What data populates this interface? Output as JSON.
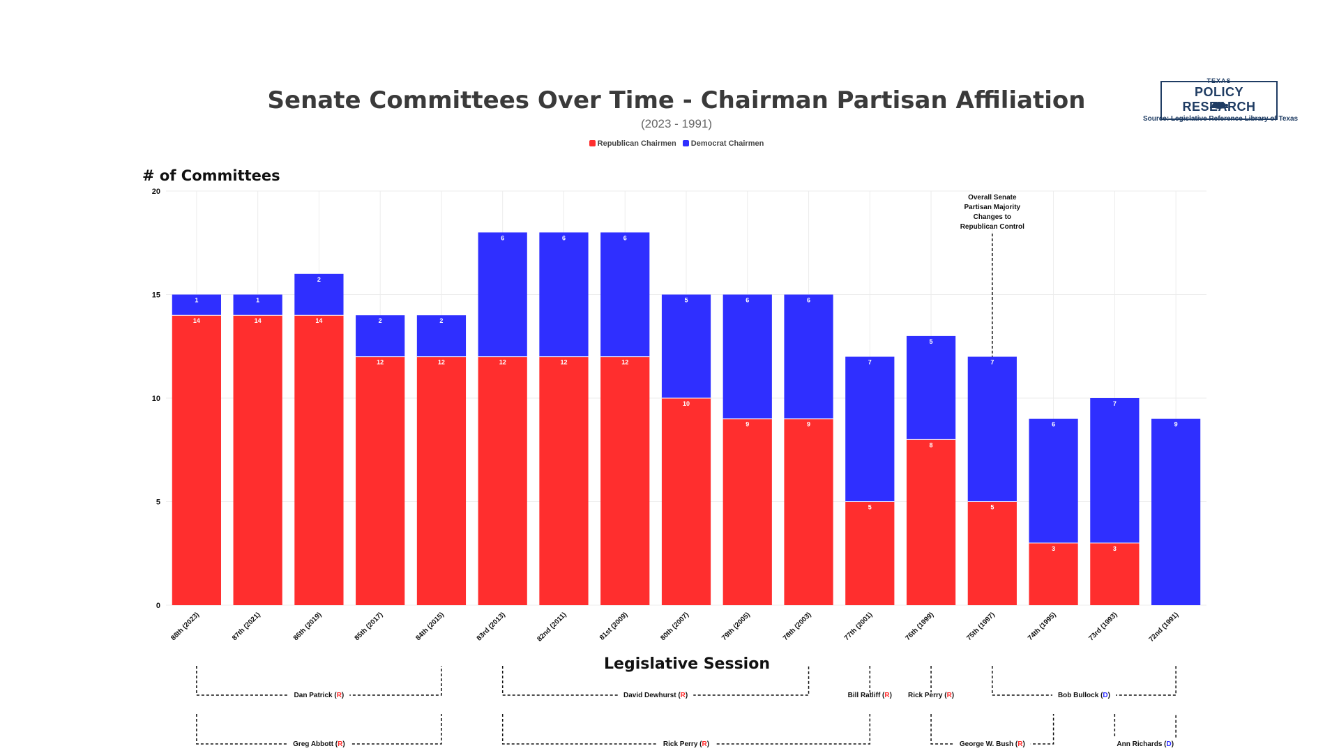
{
  "header": {
    "title": "Senate Committees Over Time - Chairman Partisan Affiliation",
    "subtitle": "(2023 - 1991)"
  },
  "branding": {
    "logo_top": "TEXAS",
    "logo_main": "POLICY RESEARCH",
    "source": "Source: Legislative Reference Library of Texas"
  },
  "colors": {
    "republican": "#ff2e2e",
    "democrat": "#2f2fff",
    "grid": "#ececec",
    "axis_text": "#111111"
  },
  "chart_data": {
    "type": "bar",
    "stacked": true,
    "ylabel": "# of Committees",
    "xlabel": "Legislative Session",
    "ylim": [
      0,
      20
    ],
    "yticks": [
      0,
      5,
      10,
      15,
      20
    ],
    "grid": true,
    "legend_position": "top-center",
    "categories": [
      "88th (2023)",
      "87th (2021)",
      "86th (2019)",
      "85th (2017)",
      "84th (2015)",
      "83rd (2013)",
      "82nd (2011)",
      "81st (2009)",
      "80th (2007)",
      "79th (2005)",
      "78th (2003)",
      "77th (2001)",
      "76th (1999)",
      "75th (1997)",
      "74th (1995)",
      "73rd (1993)",
      "72nd (1991)"
    ],
    "series": [
      {
        "name": "Republican Chairmen",
        "values": [
          14,
          14,
          14,
          12,
          12,
          12,
          12,
          12,
          10,
          9,
          9,
          5,
          8,
          5,
          3,
          3,
          0
        ]
      },
      {
        "name": "Democrat Chairmen",
        "values": [
          1,
          1,
          2,
          2,
          2,
          6,
          6,
          6,
          5,
          6,
          6,
          7,
          5,
          7,
          6,
          7,
          9
        ]
      }
    ],
    "annotation": {
      "category": "75th (1997)",
      "lines": [
        "Overall Senate",
        "Partisan Majority",
        "Changes to",
        "Republican Control"
      ]
    },
    "lieutenant_governors": [
      {
        "name": "Dan Patrick",
        "party": "R",
        "from": "88th (2023)",
        "to": "84th (2015)"
      },
      {
        "name": "David Dewhurst",
        "party": "R",
        "from": "83rd (2013)",
        "to": "78th (2003)"
      },
      {
        "name": "Bill Ratliff",
        "party": "R",
        "from": "77th (2001)",
        "to": "77th (2001)"
      },
      {
        "name": "Rick Perry",
        "party": "R",
        "from": "76th (1999)",
        "to": "76th (1999)"
      },
      {
        "name": "Bob Bullock",
        "party": "D",
        "from": "75th (1997)",
        "to": "72nd (1991)"
      }
    ],
    "governors": [
      {
        "name": "Greg Abbott",
        "party": "R",
        "from": "88th (2023)",
        "to": "84th (2015)"
      },
      {
        "name": "Rick Perry",
        "party": "R",
        "from": "83rd (2013)",
        "to": "77th (2001)"
      },
      {
        "name": "George W. Bush",
        "party": "R",
        "from": "76th (1999)",
        "to": "74th (1995)"
      },
      {
        "name": "Ann Richards",
        "party": "D",
        "from": "73rd (1993)",
        "to": "72nd (1991)"
      }
    ]
  }
}
